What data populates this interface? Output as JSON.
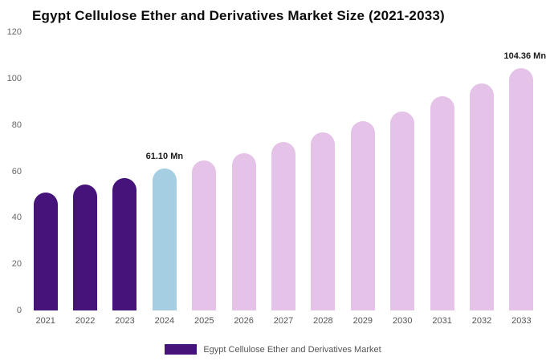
{
  "chart_data": {
    "type": "bar",
    "title": "Egypt Cellulose Ether and Derivatives Market Size (2021-2033)",
    "categories": [
      "2021",
      "2022",
      "2023",
      "2024",
      "2025",
      "2026",
      "2027",
      "2028",
      "2029",
      "2030",
      "2031",
      "2032",
      "2033"
    ],
    "values": [
      50.9,
      54.2,
      57.1,
      61.1,
      64.7,
      67.9,
      72.5,
      76.8,
      81.5,
      85.9,
      92.5,
      97.9,
      104.36
    ],
    "unit": "Mn",
    "xlabel": "",
    "ylabel": "",
    "ylim": [
      0,
      120
    ],
    "yticks": [
      0,
      20,
      40,
      60,
      80,
      100,
      120
    ],
    "grid": false,
    "legend_position": "bottom",
    "annotations": [
      {
        "category": "2024",
        "text": "61.10 Mn"
      },
      {
        "category": "2033",
        "text": "104.36 Mn"
      }
    ],
    "bar_colors": [
      "#45137a",
      "#45137a",
      "#45137a",
      "#a6cee3",
      "#e5c3e8",
      "#e5c3e8",
      "#e5c3e8",
      "#e5c3e8",
      "#e5c3e8",
      "#e5c3e8",
      "#e5c3e8",
      "#e5c3e8",
      "#e5c3e8"
    ],
    "colors": {
      "historical": "#45137a",
      "highlight": "#a6cee3",
      "forecast": "#e5c3e8"
    }
  },
  "legend": {
    "label": "Egypt Cellulose Ether and Derivatives Market",
    "swatch_color": "#45137a"
  }
}
